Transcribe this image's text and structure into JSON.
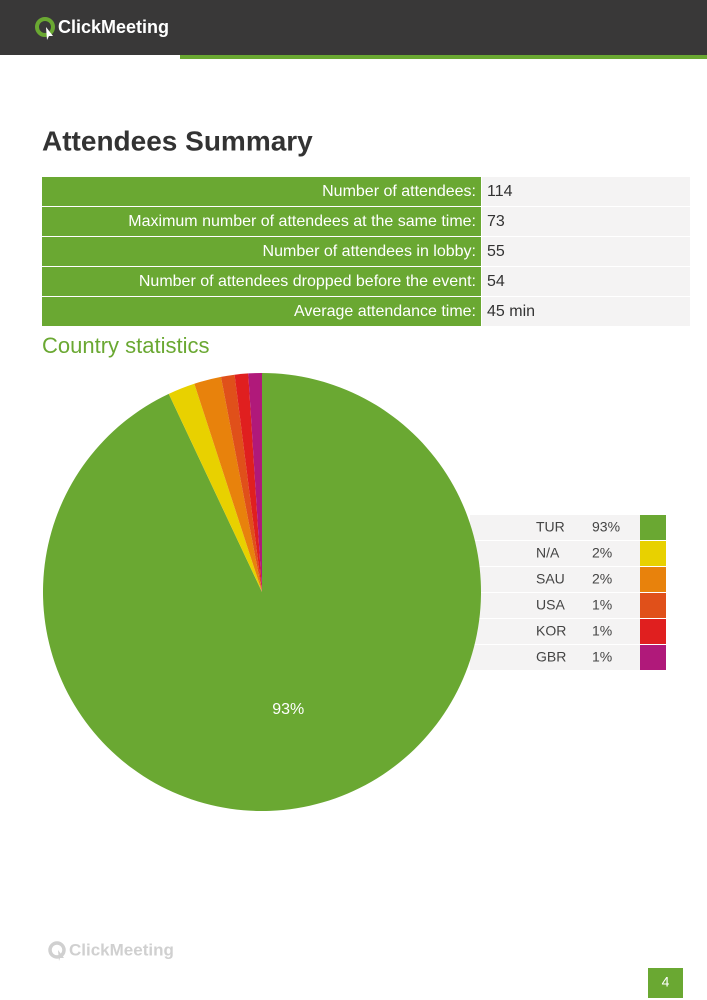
{
  "header": {
    "logo": "ClickMeeting"
  },
  "title": "Attendees Summary",
  "table": {
    "rows": [
      [
        "Number of attendees:",
        114
      ],
      [
        "Maximum number of attendees at the same time:",
        73
      ],
      [
        "Number of attendees in lobby:",
        55
      ],
      [
        "Number of attendees dropped before the event:",
        54
      ],
      [
        "Average attendance time:",
        "45 min"
      ]
    ]
  },
  "chart_data": {
    "type": "pie",
    "title": "Country statistics",
    "categories": [
      "TUR",
      "N/A",
      "SAU",
      "USA",
      "KOR",
      "GBR"
    ],
    "values": [
      93,
      2,
      2,
      1,
      1,
      1
    ],
    "value_labels": [
      "93%",
      "2%",
      "2%",
      "1%",
      "1%",
      "1%"
    ],
    "colors": [
      "#6aa832",
      "#e8d100",
      "#e8820c",
      "#e0501a",
      "#e01f1f",
      "#b0197a"
    ]
  },
  "footer": {
    "logo": "ClickMeeting",
    "page": "4"
  }
}
